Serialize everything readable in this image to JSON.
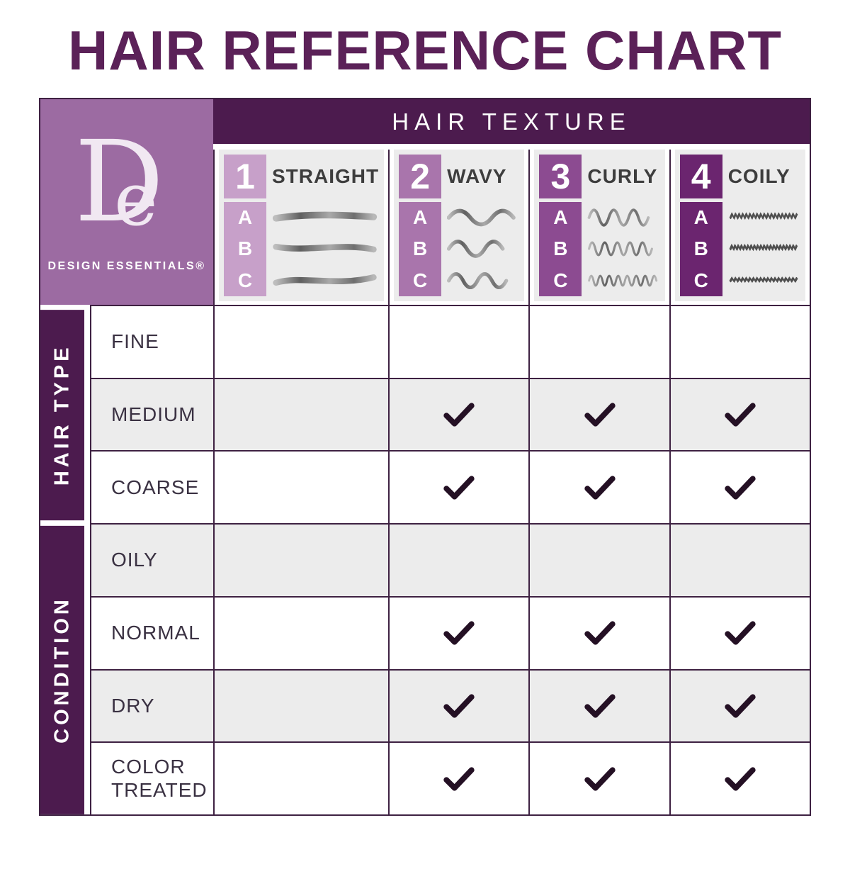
{
  "title": "HAIR REFERENCE CHART",
  "brand": {
    "monogram_d": "D",
    "monogram_e": "e",
    "name": "DESIGN ESSENTIALS®"
  },
  "header": {
    "label": "HAIR TEXTURE",
    "textures": [
      {
        "number": "1",
        "label": "STRAIGHT",
        "sub": [
          "A",
          "B",
          "C"
        ],
        "pattern": "straight",
        "color": "#c7a0c9"
      },
      {
        "number": "2",
        "label": "WAVY",
        "sub": [
          "A",
          "B",
          "C"
        ],
        "pattern": "wavy",
        "color": "#a975ac"
      },
      {
        "number": "3",
        "label": "CURLY",
        "sub": [
          "A",
          "B",
          "C"
        ],
        "pattern": "curly",
        "color": "#8c4b91"
      },
      {
        "number": "4",
        "label": "COILY",
        "sub": [
          "A",
          "B",
          "C"
        ],
        "pattern": "coily",
        "color": "#6b256f"
      }
    ]
  },
  "sections": [
    {
      "label": "HAIR TYPE",
      "rows": [
        {
          "label": "FINE",
          "checks": [
            false,
            false,
            false,
            false
          ]
        },
        {
          "label": "MEDIUM",
          "checks": [
            false,
            true,
            true,
            true
          ]
        },
        {
          "label": "COARSE",
          "checks": [
            false,
            true,
            true,
            true
          ]
        }
      ]
    },
    {
      "label": "CONDITION",
      "rows": [
        {
          "label": "OILY",
          "checks": [
            false,
            false,
            false,
            false
          ]
        },
        {
          "label": "NORMAL",
          "checks": [
            false,
            true,
            true,
            true
          ]
        },
        {
          "label": "DRY",
          "checks": [
            false,
            true,
            true,
            true
          ]
        },
        {
          "label": "COLOR TREATED",
          "checks": [
            false,
            true,
            true,
            true
          ]
        }
      ]
    }
  ],
  "colors": {
    "dark_purple": "#4c1b4e",
    "title_purple": "#5b2158",
    "logo_background": "#9c6ba2",
    "grid_line": "#3e2142",
    "check": "#241024",
    "cell_gray": "#ececec"
  },
  "chart_data": {
    "type": "table",
    "title": "HAIR REFERENCE CHART",
    "column_group": "HAIR TEXTURE",
    "columns": [
      "1 STRAIGHT",
      "2 WAVY",
      "3 CURLY",
      "4 COILY"
    ],
    "column_subtypes": [
      "A",
      "B",
      "C"
    ],
    "row_groups": [
      {
        "name": "HAIR TYPE",
        "rows": [
          "FINE",
          "MEDIUM",
          "COARSE"
        ]
      },
      {
        "name": "CONDITION",
        "rows": [
          "OILY",
          "NORMAL",
          "DRY",
          "COLOR TREATED"
        ]
      }
    ],
    "matrix": [
      [
        0,
        0,
        0,
        0
      ],
      [
        0,
        1,
        1,
        1
      ],
      [
        0,
        1,
        1,
        1
      ],
      [
        0,
        0,
        0,
        0
      ],
      [
        0,
        1,
        1,
        1
      ],
      [
        0,
        1,
        1,
        1
      ],
      [
        0,
        1,
        1,
        1
      ]
    ],
    "legend": "1 = checked (recommended), 0 = blank"
  }
}
